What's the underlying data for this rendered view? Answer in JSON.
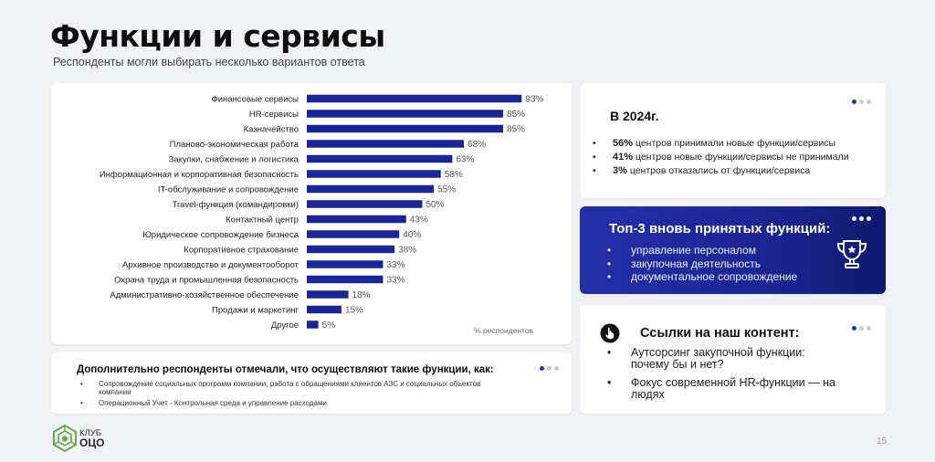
{
  "header": {
    "title": "Функции и сервисы",
    "subtitle": "Респонденты могли выбирать несколько вариантов ответа"
  },
  "chart_data": {
    "type": "bar",
    "orientation": "horizontal",
    "categories": [
      "Финансовые сервисы",
      "HR-сервисы",
      "Казначейство",
      "Планово-экономическая работа",
      "Закупки, снабжение и логистика",
      "Информационная и корпоративная безопасность",
      "IT-обслуживание и сопровождение",
      "Travel-функция (командировки)",
      "Контактный центр",
      "Юридическое сопровождение бизнеса",
      "Корпоративное страхование",
      "Архивное производство и документооборот",
      "Охрана труда и промышленная безопасность",
      "Административно-хозяйственное обеспечение",
      "Продажи и маркетинг",
      "Другое"
    ],
    "values": [
      93,
      85,
      85,
      68,
      63,
      58,
      55,
      50,
      43,
      40,
      38,
      33,
      33,
      18,
      15,
      5
    ],
    "value_labels": [
      "93%",
      "85%",
      "85%",
      "68%",
      "63%",
      "58%",
      "55%",
      "50%",
      "43%",
      "40%",
      "38%",
      "33%",
      "33%",
      "18%",
      "15%",
      "5%"
    ],
    "unit_note": "% респондентов",
    "xlim": [
      0,
      100
    ],
    "grid": false,
    "bar_color": "#1c2594"
  },
  "extra": {
    "title": "Дополнительно респонденты отмечали, что осуществляют такие функции, как:",
    "items": [
      "Сопровождение социальных программ компании, работа с обращениями клиентов АЗС и социальных объектов компании",
      "Операционный Учет - Контрольная среда и управление расходами"
    ]
  },
  "year_block": {
    "title": "В 2024г.",
    "items": [
      {
        "value": "56%",
        "text": " центров принимали новые функции/сервисы"
      },
      {
        "value": "41%",
        "text": " центров новые функции/сервисы не принимали"
      },
      {
        "value": "3%",
        "text": " центров отказались от функции/сервиса"
      }
    ]
  },
  "top3": {
    "title": "Топ-3 вновь принятых функций:",
    "items": [
      "управление персоналом",
      "закупочная деятельность",
      "документальное сопровождение"
    ]
  },
  "links": {
    "title": "Ссылки на наш контент:",
    "items": [
      "Аутсорсинг закупочной функции: почему бы и нет?",
      "Фокус современной HR-функции — на людях"
    ]
  },
  "logo": {
    "line1": "КЛУБ",
    "line2": "ОЦО"
  },
  "page_number": "15",
  "icons": {
    "hand": "pointer-hand-icon",
    "trophy": "trophy-icon",
    "dots": "pager-dots-icon"
  },
  "colors": {
    "accent": "#1c2594",
    "background": "#f1f2f5",
    "logo_green": "#6aa84f"
  }
}
